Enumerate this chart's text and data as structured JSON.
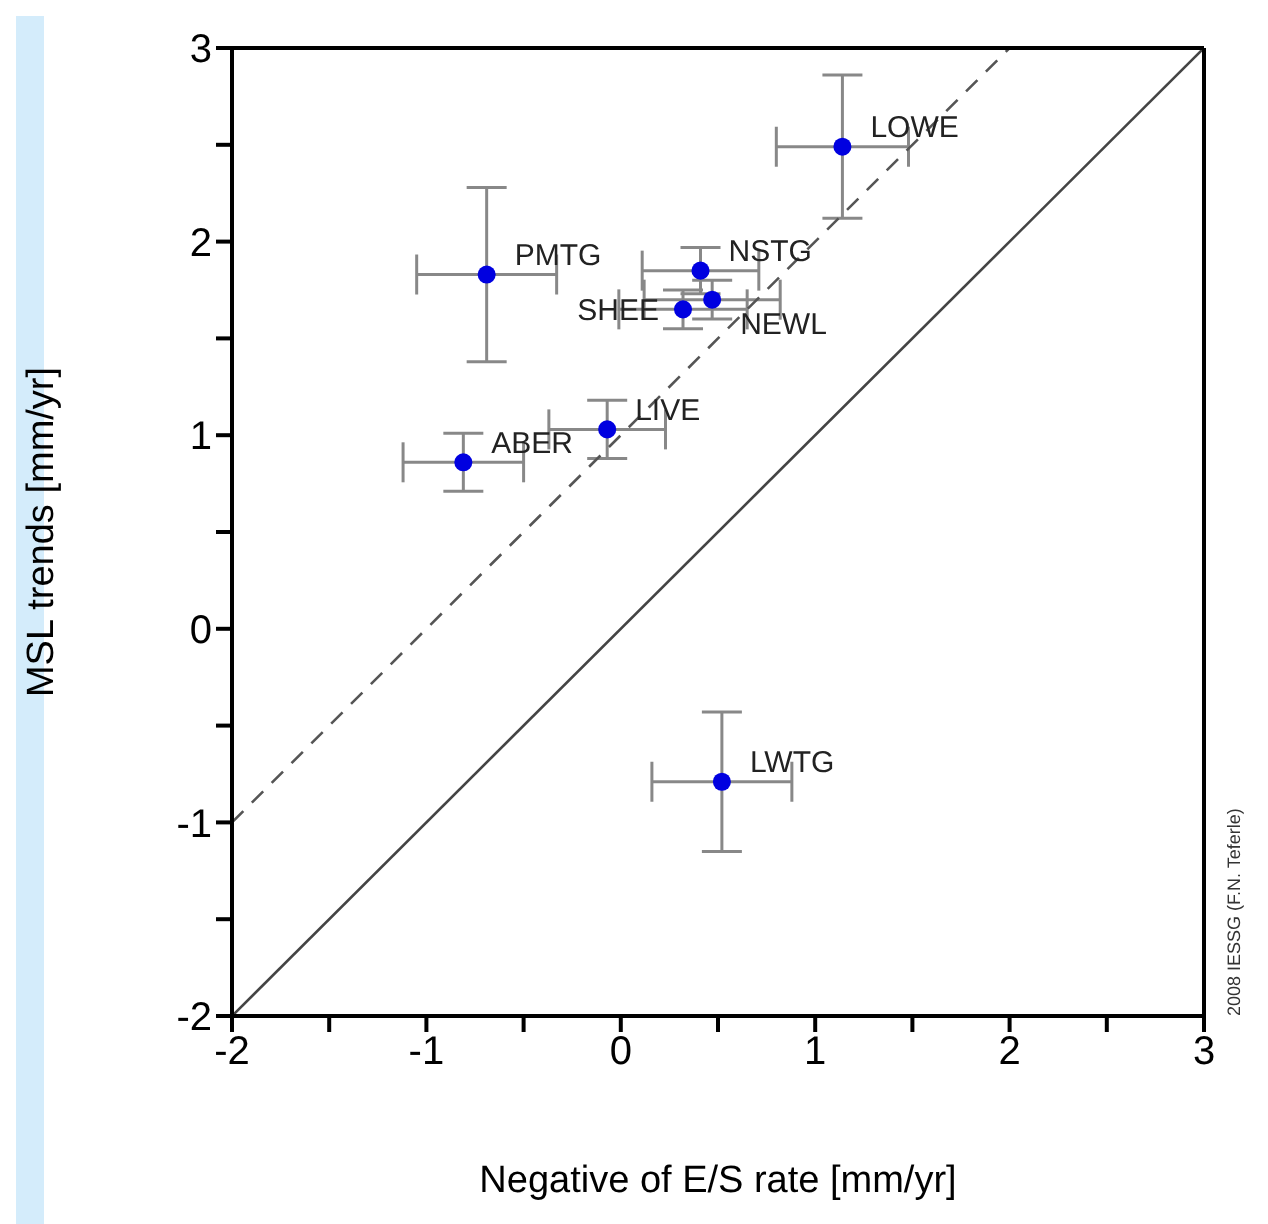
{
  "chart_data": {
    "type": "scatter",
    "xlabel": "Negative of E/S rate [mm/yr]",
    "ylabel": "MSL trends [mm/yr]",
    "xlim": [
      -2,
      3
    ],
    "ylim": [
      -2,
      3
    ],
    "xticks": [
      -2,
      {
        "value": -1.5,
        "label": null
      },
      -1,
      {
        "value": -0.5,
        "label": null
      },
      0,
      {
        "value": 0.5,
        "label": null
      },
      1,
      {
        "value": 1.5,
        "label": null
      },
      2,
      {
        "value": 2.5,
        "label": null
      },
      3
    ],
    "yticks": [
      -2,
      {
        "value": -1.5,
        "label": null
      },
      -1,
      {
        "value": -0.5,
        "label": null
      },
      0,
      {
        "value": 0.5,
        "label": null
      },
      1,
      {
        "value": 1.5,
        "label": null
      },
      2,
      {
        "value": 2.5,
        "label": null
      },
      3
    ],
    "marker": "circle",
    "series": [
      {
        "color": "#0000e0",
        "x": [
          1.14,
          -0.69,
          0.41,
          0.47,
          0.32,
          -0.07,
          -0.81,
          0.52
        ],
        "values": [
          2.49,
          1.83,
          1.85,
          1.7,
          1.65,
          1.03,
          0.86,
          -0.79
        ],
        "errors": [
          0.37,
          0.45,
          0.12,
          0.1,
          0.1,
          0.15,
          0.15,
          0.36
        ],
        "xerrors": [
          0.34,
          0.36,
          0.3,
          0.35,
          0.33,
          0.3,
          0.31,
          0.36
        ]
      },
      {
        "type": "line",
        "color": "#444444",
        "line_style": "solid",
        "marker": "none",
        "x": [
          -2,
          3
        ],
        "values": [
          -2,
          3
        ]
      },
      {
        "type": "line",
        "color": "#555555",
        "line_style": "dashed",
        "marker": "none",
        "x": [
          -2,
          2
        ],
        "values": [
          -1,
          3
        ]
      }
    ],
    "annotations": [
      {
        "text": "LOWE",
        "x": 1.14,
        "y": 2.49
      },
      {
        "text": "PMTG",
        "x": -0.69,
        "y": 1.83
      },
      {
        "text": "NSTG",
        "x": 0.41,
        "y": 1.85
      },
      {
        "text": "NEWL",
        "x": 0.47,
        "y": 1.7
      },
      {
        "text": "SHEE",
        "x": 0.32,
        "y": 1.65
      },
      {
        "text": "LIVE",
        "x": -0.07,
        "y": 1.03
      },
      {
        "text": "ABER",
        "x": -0.81,
        "y": 0.86
      },
      {
        "text": "LWTG",
        "x": 0.52,
        "y": -0.79
      },
      "2008 IESSG (F.N. Teferle)"
    ]
  }
}
